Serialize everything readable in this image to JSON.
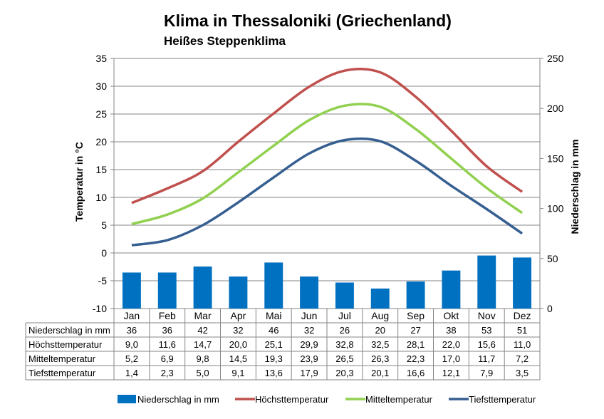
{
  "chart_data": {
    "type": "bar",
    "title": "Klima in Thessaloniki (Griechenland)",
    "subtitle": "Heißes Steppenklima",
    "ylabel": "Temperatur in °C",
    "y2label": "Niederschlag in mm",
    "ylim": [
      -10,
      35
    ],
    "y2lim": [
      0,
      250
    ],
    "yticks": [
      "35",
      "30",
      "25",
      "20",
      "15",
      "10",
      "5",
      "0",
      "-5",
      "-10"
    ],
    "y2ticks": [
      "250",
      "200",
      "150",
      "100",
      "50",
      "0"
    ],
    "categories": [
      "Jan",
      "Feb",
      "Mar",
      "Apr",
      "Mai",
      "Jun",
      "Jul",
      "Aug",
      "Sep",
      "Okt",
      "Nov",
      "Dez"
    ],
    "bar_series": {
      "name": "Niederschlag in mm",
      "color": "#0070C0",
      "axis": "right",
      "values": [
        36,
        36,
        42,
        32,
        46,
        32,
        26,
        20,
        27,
        38,
        53,
        51
      ],
      "labels": [
        "36",
        "36",
        "42",
        "32",
        "46",
        "32",
        "26",
        "20",
        "27",
        "38",
        "53",
        "51"
      ]
    },
    "line_series": [
      {
        "name": "Höchsttemperatur",
        "color": "#C0504D",
        "axis": "left",
        "values": [
          9.0,
          11.6,
          14.7,
          20.0,
          25.1,
          29.9,
          32.8,
          32.5,
          28.1,
          22.0,
          15.6,
          11.0
        ],
        "labels": [
          "9,0",
          "11,6",
          "14,7",
          "20,0",
          "25,1",
          "29,9",
          "32,8",
          "32,5",
          "28,1",
          "22,0",
          "15,6",
          "11,0"
        ]
      },
      {
        "name": "Mitteltemperatur",
        "color": "#92D050",
        "axis": "left",
        "values": [
          5.2,
          6.9,
          9.8,
          14.5,
          19.3,
          23.9,
          26.5,
          26.3,
          22.3,
          17.0,
          11.7,
          7.2
        ],
        "labels": [
          "5,2",
          "6,9",
          "9,8",
          "14,5",
          "19,3",
          "23,9",
          "26,5",
          "26,3",
          "22,3",
          "17,0",
          "11,7",
          "7,2"
        ]
      },
      {
        "name": "Tiefsttemperatur",
        "color": "#365F91",
        "axis": "left",
        "values": [
          1.4,
          2.3,
          5.0,
          9.1,
          13.6,
          17.9,
          20.3,
          20.1,
          16.6,
          12.1,
          7.9,
          3.5
        ],
        "labels": [
          "1,4",
          "2,3",
          "5,0",
          "9,1",
          "13,6",
          "17,9",
          "20,3",
          "20,1",
          "16,6",
          "12,1",
          "7,9",
          "3,5"
        ]
      }
    ],
    "grid": true,
    "legend": "bottom",
    "data_table": true
  }
}
